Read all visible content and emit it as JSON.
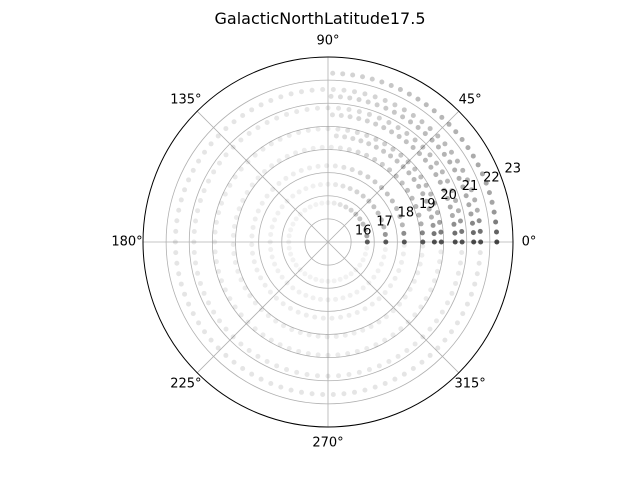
{
  "chart_data": {
    "type": "scatter",
    "projection": "polar",
    "title": "GalacticNorthLatitude17.5",
    "theta_unit": "degrees",
    "theta_ticks": [
      {
        "deg": 0,
        "label": "0°"
      },
      {
        "deg": 45,
        "label": "45°"
      },
      {
        "deg": 90,
        "label": "90°"
      },
      {
        "deg": 135,
        "label": "135°"
      },
      {
        "deg": 180,
        "label": "180°"
      },
      {
        "deg": 225,
        "label": "225°"
      },
      {
        "deg": 270,
        "label": "270°"
      },
      {
        "deg": 315,
        "label": "315°"
      }
    ],
    "r_ticks": [
      {
        "value": 16,
        "label": "16"
      },
      {
        "value": 17,
        "label": "17"
      },
      {
        "value": 18,
        "label": "18"
      },
      {
        "value": 19,
        "label": "19"
      },
      {
        "value": 20,
        "label": "20"
      },
      {
        "value": 21,
        "label": "21"
      },
      {
        "value": 22,
        "label": "22"
      },
      {
        "value": 23,
        "label": "23"
      }
    ],
    "rlim": [
      15,
      23
    ],
    "r_label_angle_deg": 22.5,
    "grid": true,
    "marker_color": "#000000",
    "rings": [
      {
        "r": 16.7,
        "theta_max": 360,
        "step_deg": 9,
        "base_alpha": 0.05
      },
      {
        "r": 17.5,
        "theta_max": 360,
        "step_deg": 7.5,
        "base_alpha": 0.06
      },
      {
        "r": 18.3,
        "theta_max": 360,
        "step_deg": 6.5,
        "base_alpha": 0.07
      },
      {
        "r": 19.1,
        "theta_max": 360,
        "step_deg": 5.5,
        "base_alpha": 0.07
      },
      {
        "r": 19.6,
        "theta_max": 90,
        "step_deg": 4.5,
        "base_alpha": 0.1
      },
      {
        "r": 19.9,
        "theta_max": 360,
        "step_deg": 5,
        "base_alpha": 0.08
      },
      {
        "r": 20.5,
        "theta_max": 90,
        "step_deg": 4,
        "base_alpha": 0.11
      },
      {
        "r": 20.8,
        "theta_max": 360,
        "step_deg": 4.5,
        "base_alpha": 0.09
      },
      {
        "r": 21.3,
        "theta_max": 90,
        "step_deg": 3.7,
        "base_alpha": 0.12
      },
      {
        "r": 21.6,
        "theta_max": 360,
        "step_deg": 4,
        "base_alpha": 0.1
      },
      {
        "r": 22.3,
        "theta_max": 90,
        "step_deg": 3.4,
        "base_alpha": 0.14
      }
    ]
  }
}
